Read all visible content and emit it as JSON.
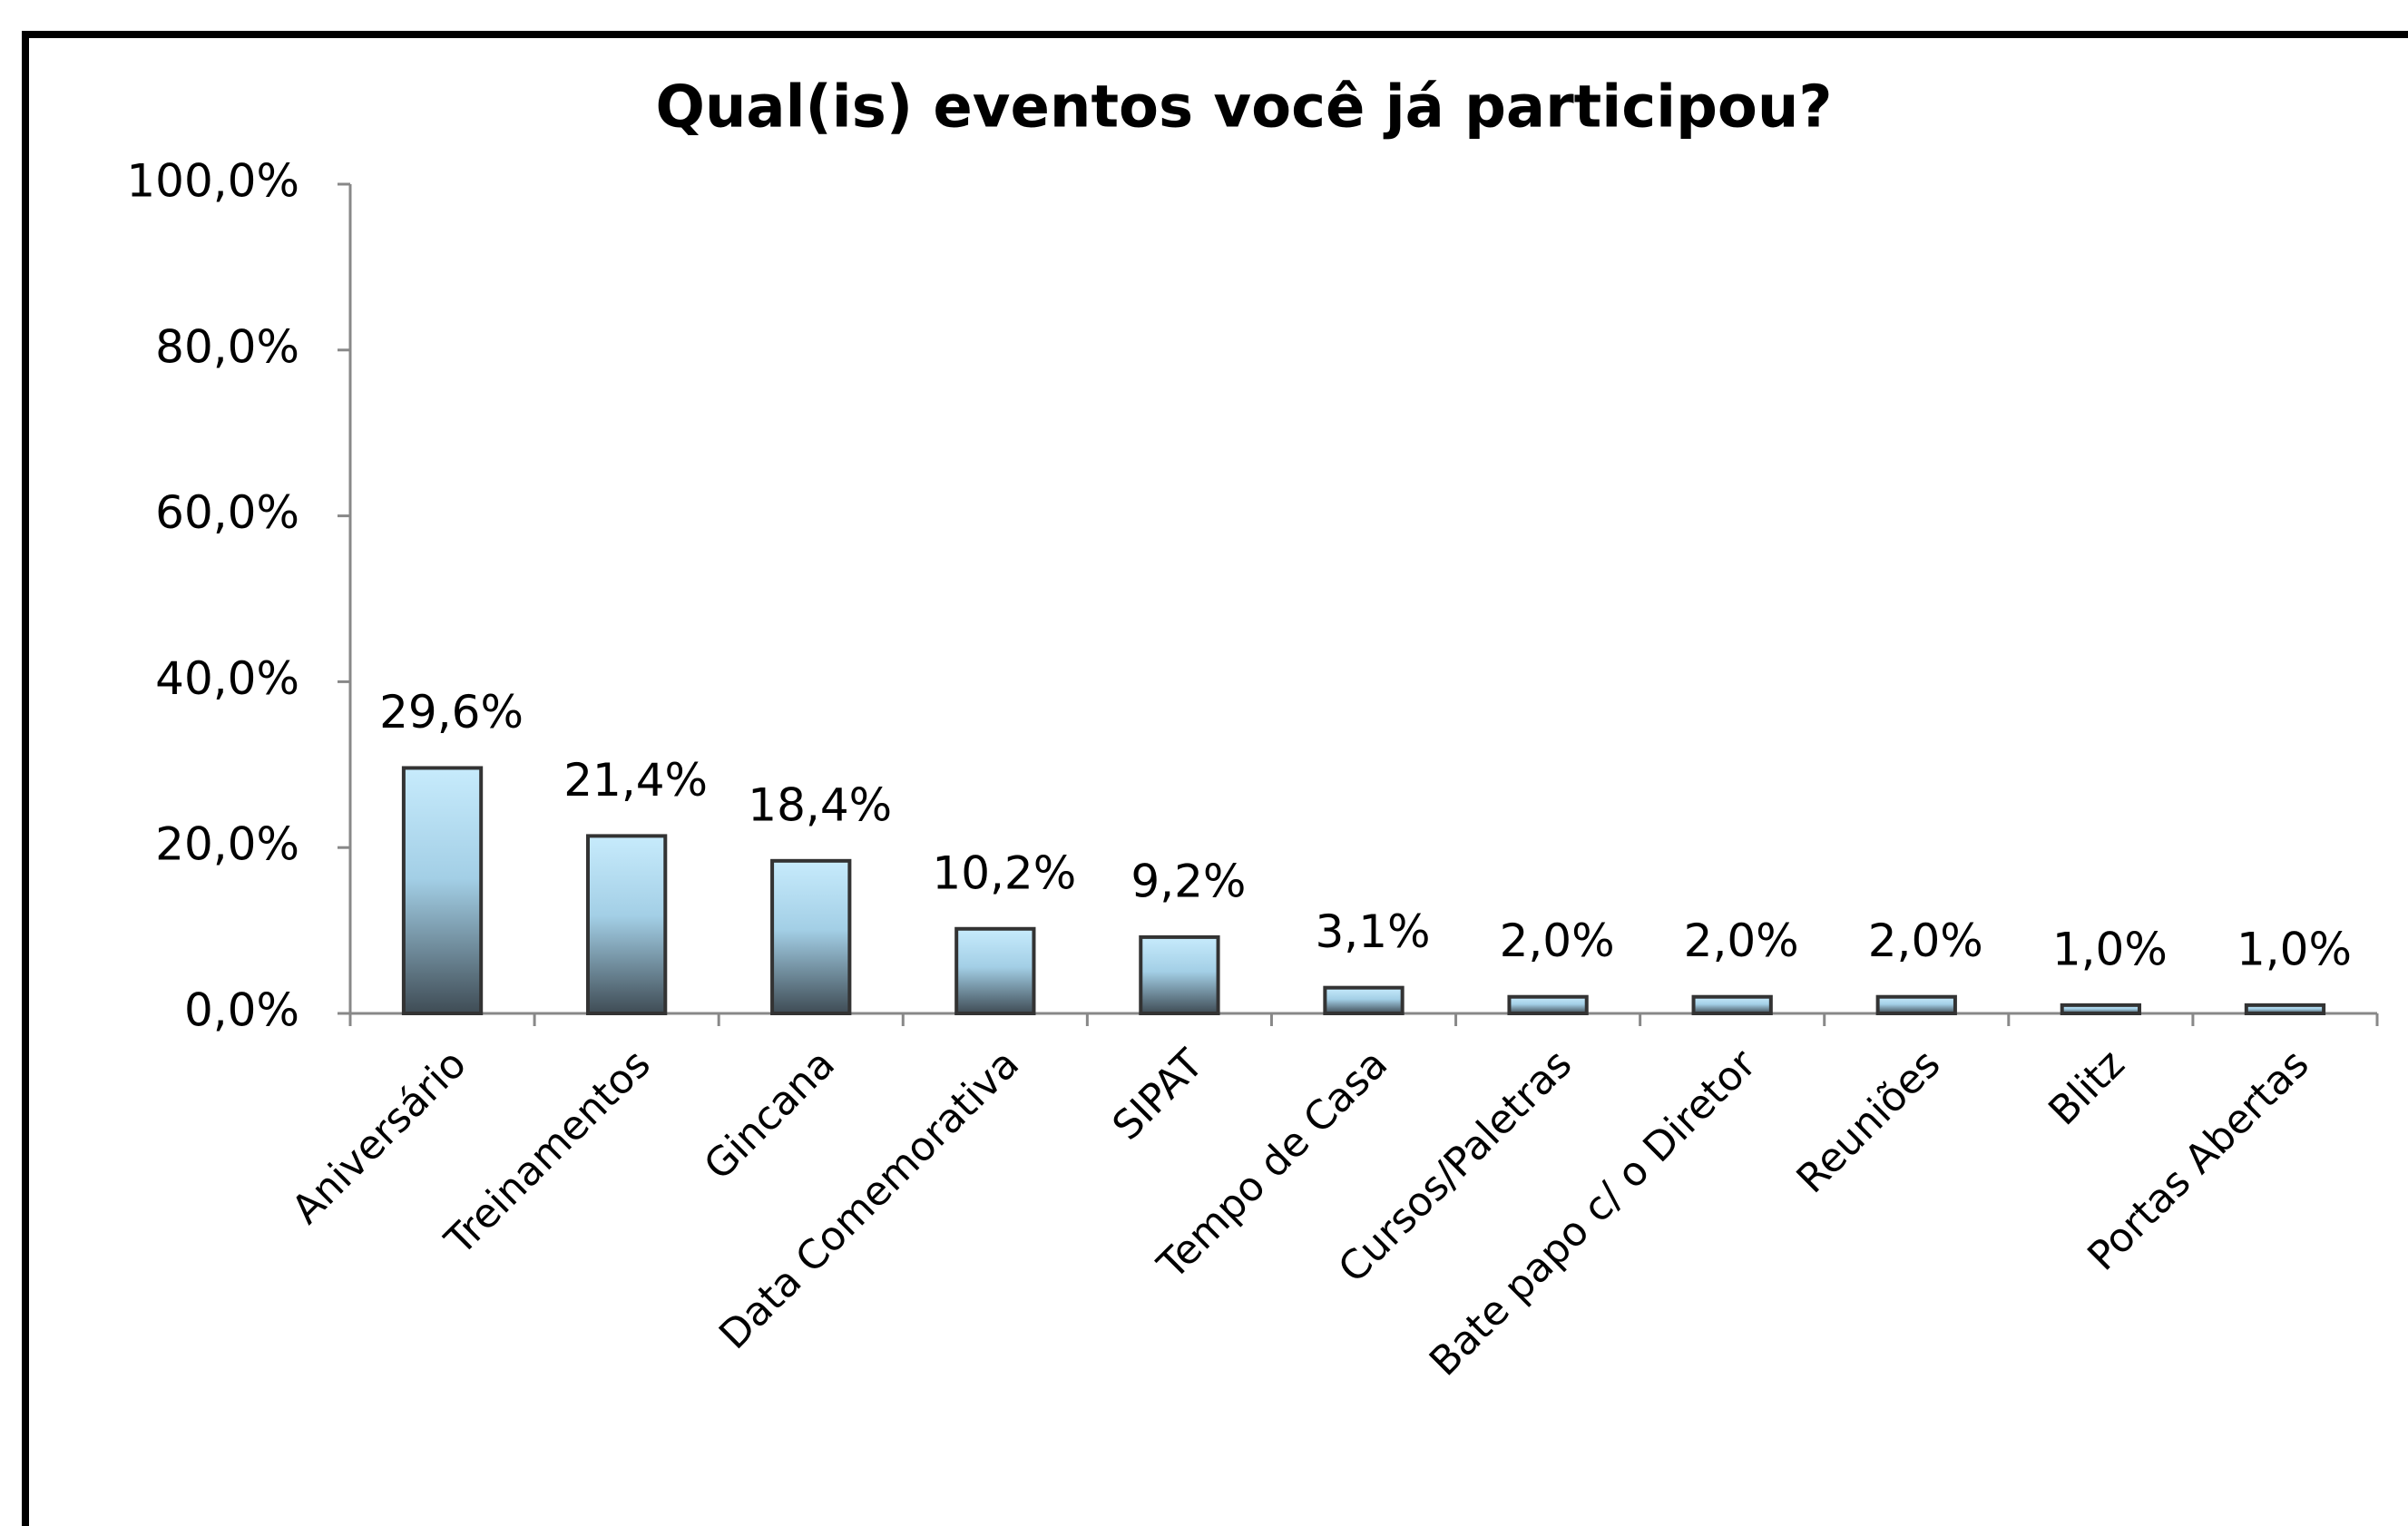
{
  "chart_data": {
    "type": "bar",
    "title": "Qual(is) eventos você já participou?",
    "categories": [
      "Aniversário",
      "Treinamentos",
      "Gincana",
      "Data Comemorativa",
      "SIPAT",
      "Tempo de Casa",
      "Cursos/Paletras",
      "Bate papo c/ o Diretor",
      "Reuniões",
      "Blitz",
      "Portas Abertas"
    ],
    "values": [
      29.6,
      21.4,
      18.4,
      10.2,
      9.2,
      3.1,
      2.0,
      2.0,
      2.0,
      1.0,
      1.0
    ],
    "value_labels": [
      "29,6%",
      "21,4%",
      "18,4%",
      "10,2%",
      "9,2%",
      "3,1%",
      "2,0%",
      "2,0%",
      "2,0%",
      "1,0%",
      "1,0%"
    ],
    "color": "#a9d8f2",
    "ylim": [
      0,
      100
    ],
    "yticks": [
      {
        "value": 0,
        "label": "0,0%"
      },
      {
        "value": 20,
        "label": "20,0%"
      },
      {
        "value": 40,
        "label": "40,0%"
      },
      {
        "value": 60,
        "label": "60,0%"
      },
      {
        "value": 80,
        "label": "80,0%"
      },
      {
        "value": 100,
        "label": "100,0%"
      }
    ],
    "grid": false
  }
}
